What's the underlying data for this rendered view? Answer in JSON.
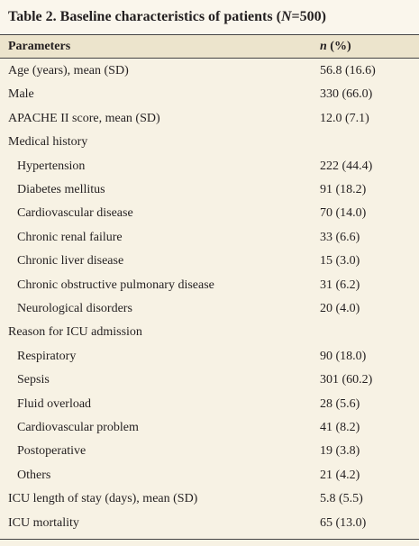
{
  "table": {
    "title": [
      "Table 2. Baseline characteristics of patients (",
      "N",
      "=500)"
    ],
    "header": [
      [
        "Parameters"
      ],
      [
        "n",
        " (%)"
      ]
    ],
    "rows": [
      [
        "Age (years), mean (SD)",
        "56.8 (16.6)"
      ],
      [
        "Male",
        "330 (66.0)"
      ],
      [
        "APACHE II score, mean (SD)",
        "12.0 (7.1)"
      ],
      {
        "label": "Medical history",
        "items": [
          [
            "Hypertension",
            "222 (44.4)"
          ],
          [
            "Diabetes mellitus",
            "91 (18.2)"
          ],
          [
            "Cardiovascular disease",
            "70 (14.0)"
          ],
          [
            "Chronic renal failure",
            "33 (6.6)"
          ],
          [
            "Chronic liver disease",
            "15 (3.0)"
          ],
          [
            "Chronic obstructive pulmonary disease",
            "31 (6.2)"
          ],
          [
            "Neurological disorders",
            "20 (4.0)"
          ]
        ]
      },
      {
        "label": "Reason for ICU admission",
        "items": [
          [
            "Respiratory",
            "90 (18.0)"
          ],
          [
            "Sepsis",
            "301 (60.2)"
          ],
          [
            "Fluid overload",
            "28 (5.6)"
          ],
          [
            "Cardiovascular problem",
            "41 (8.2)"
          ],
          [
            "Postoperative",
            "19 (3.8)"
          ],
          [
            "Others",
            "21 (4.2)"
          ]
        ]
      },
      [
        "ICU length of stay (days), mean (SD)",
        "5.8 (5.5)"
      ],
      [
        "ICU mortality",
        "65 (13.0)"
      ]
    ]
  }
}
